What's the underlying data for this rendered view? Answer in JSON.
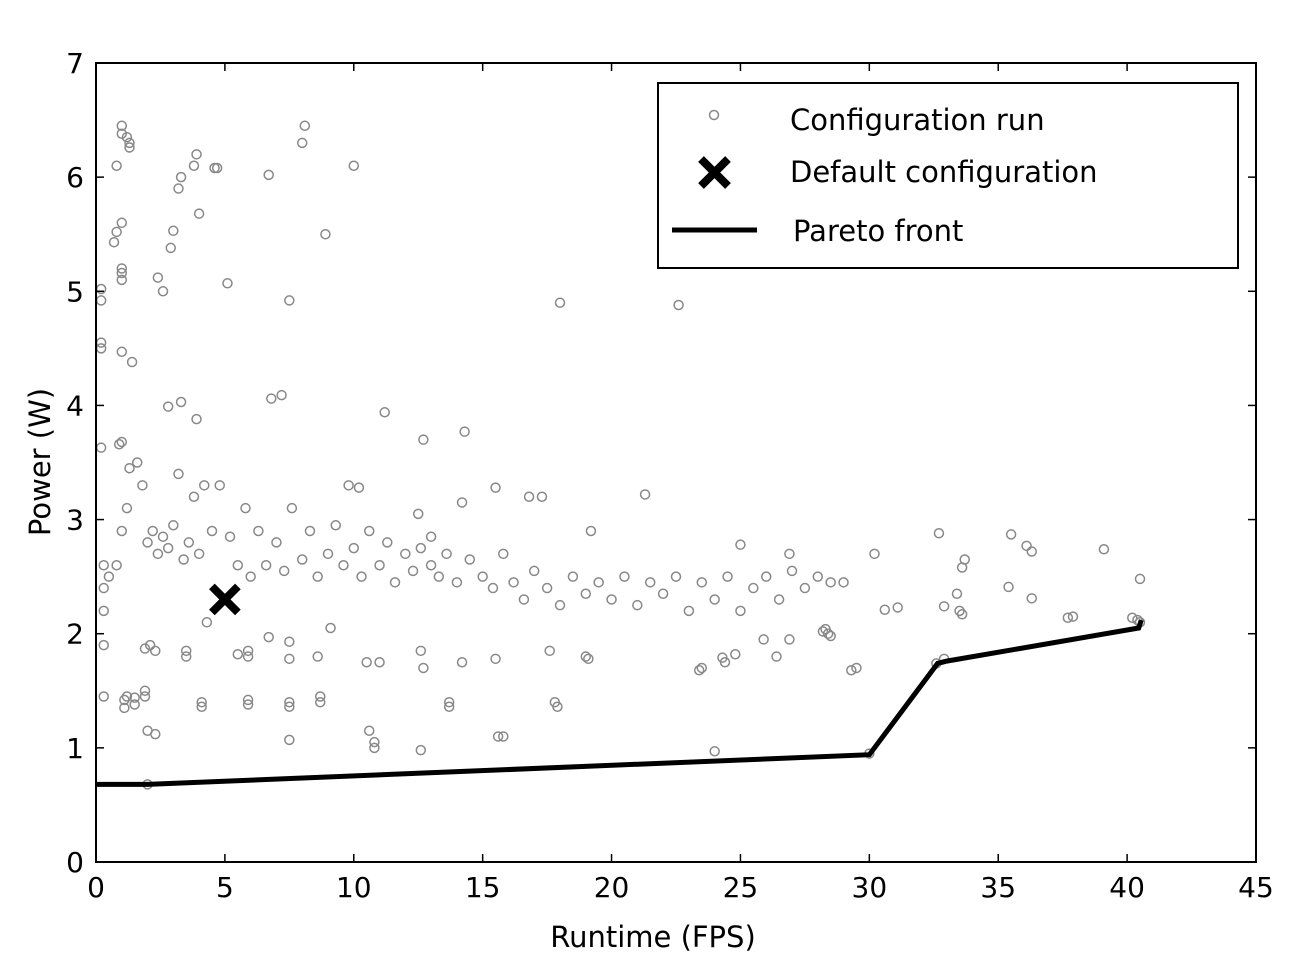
{
  "chart_data": {
    "type": "scatter",
    "title": "",
    "xlabel": "Runtime (FPS)",
    "ylabel": "Power (W)",
    "xlim": [
      0,
      45
    ],
    "ylim": [
      0,
      7
    ],
    "xticks": [
      "0",
      "5",
      "10",
      "15",
      "20",
      "25",
      "30",
      "35",
      "40",
      "45"
    ],
    "yticks": [
      "0",
      "1",
      "2",
      "3",
      "4",
      "5",
      "6",
      "7"
    ],
    "grid": false,
    "legend_position": "top-right",
    "legend": {
      "config_run": "Configuration run",
      "default_config": "Default configuration",
      "pareto": "Pareto front"
    },
    "colors": {
      "runs": "#888888",
      "default": "#000000",
      "pareto": "#000000"
    },
    "default_configuration": [
      5.0,
      2.3
    ],
    "pareto_front": [
      [
        0,
        0.68
      ],
      [
        2,
        0.68
      ],
      [
        30,
        0.94
      ],
      [
        32.65,
        1.74
      ],
      [
        33,
        1.76
      ],
      [
        40.45,
        2.05
      ],
      [
        40.55,
        2.12
      ]
    ],
    "configuration_runs": [
      [
        0.2,
        4.92
      ],
      [
        0.2,
        5.02
      ],
      [
        0.2,
        4.55
      ],
      [
        0.2,
        4.5
      ],
      [
        0.2,
        3.63
      ],
      [
        0.7,
        5.43
      ],
      [
        0.8,
        5.52
      ],
      [
        0.8,
        6.1
      ],
      [
        0.9,
        3.66
      ],
      [
        1,
        3.68
      ],
      [
        1,
        4.47
      ],
      [
        1,
        5.1
      ],
      [
        1,
        5.16
      ],
      [
        1,
        5.2
      ],
      [
        1,
        5.6
      ],
      [
        1,
        6.45
      ],
      [
        1,
        6.38
      ],
      [
        1.2,
        6.35
      ],
      [
        1.3,
        6.3
      ],
      [
        1.3,
        6.26
      ],
      [
        1.4,
        4.38
      ],
      [
        2.4,
        5.12
      ],
      [
        2.6,
        5.0
      ],
      [
        2.9,
        5.38
      ],
      [
        3,
        5.53
      ],
      [
        3.2,
        5.9
      ],
      [
        3.3,
        6.0
      ],
      [
        3.8,
        6.1
      ],
      [
        3.9,
        6.2
      ],
      [
        4,
        5.68
      ],
      [
        4.6,
        6.08
      ],
      [
        4.7,
        6.08
      ],
      [
        5.1,
        5.07
      ],
      [
        6.7,
        6.02
      ],
      [
        7.5,
        4.92
      ],
      [
        8,
        6.3
      ],
      [
        8.1,
        6.45
      ],
      [
        8.9,
        5.5
      ],
      [
        10,
        6.1
      ],
      [
        18,
        4.9
      ],
      [
        22.6,
        4.88
      ],
      [
        2.8,
        3.99
      ],
      [
        3.3,
        4.03
      ],
      [
        3.9,
        3.88
      ],
      [
        6.8,
        4.06
      ],
      [
        7.2,
        4.09
      ],
      [
        11.2,
        3.94
      ],
      [
        12.7,
        3.7
      ],
      [
        14.3,
        3.77
      ],
      [
        30.2,
        2.7
      ],
      [
        32.7,
        2.88
      ],
      [
        33.6,
        2.58
      ],
      [
        33.7,
        2.65
      ],
      [
        35.4,
        2.41
      ],
      [
        35.5,
        2.87
      ],
      [
        36.1,
        2.77
      ],
      [
        36.3,
        2.72
      ],
      [
        36.3,
        2.31
      ],
      [
        37.9,
        2.15
      ],
      [
        37.7,
        2.14
      ],
      [
        39.1,
        2.74
      ],
      [
        40.2,
        2.14
      ],
      [
        40.5,
        2.48
      ],
      [
        40.4,
        2.12
      ],
      [
        32.9,
        2.24
      ],
      [
        33.4,
        2.35
      ],
      [
        33.5,
        2.2
      ],
      [
        33.6,
        2.17
      ],
      [
        31.1,
        2.23
      ],
      [
        30.6,
        2.21
      ],
      [
        28.4,
        2.0
      ],
      [
        28.2,
        2.02
      ],
      [
        28.5,
        1.98
      ],
      [
        28.3,
        2.04
      ],
      [
        29.3,
        1.68
      ],
      [
        29.5,
        1.7
      ],
      [
        23.5,
        1.7
      ],
      [
        23.4,
        1.68
      ],
      [
        24.3,
        1.79
      ],
      [
        24.4,
        1.75
      ],
      [
        25.9,
        1.95
      ],
      [
        26.9,
        1.95
      ],
      [
        26.4,
        1.8
      ],
      [
        24.8,
        1.82
      ],
      [
        24,
        0.97
      ],
      [
        30,
        0.95
      ],
      [
        32.6,
        1.74
      ],
      [
        32.9,
        1.78
      ],
      [
        40.5,
        2.1
      ],
      [
        0.3,
        1.45
      ],
      [
        0.3,
        1.9
      ],
      [
        0.3,
        2.2
      ],
      [
        0.3,
        2.4
      ],
      [
        0.3,
        2.6
      ],
      [
        1.1,
        1.35
      ],
      [
        1.1,
        1.42
      ],
      [
        1.2,
        1.45
      ],
      [
        1.5,
        1.38
      ],
      [
        1.5,
        1.44
      ],
      [
        1.9,
        1.45
      ],
      [
        1.9,
        1.5
      ],
      [
        1.9,
        1.87
      ],
      [
        2.3,
        1.85
      ],
      [
        2.1,
        1.9
      ],
      [
        3.5,
        1.8
      ],
      [
        3.5,
        1.85
      ],
      [
        4.1,
        1.4
      ],
      [
        4.1,
        1.36
      ],
      [
        5.9,
        1.38
      ],
      [
        5.9,
        1.42
      ],
      [
        5.9,
        1.8
      ],
      [
        5.9,
        1.85
      ],
      [
        7.5,
        1.4
      ],
      [
        7.5,
        1.36
      ],
      [
        7.5,
        1.78
      ],
      [
        8.7,
        1.4
      ],
      [
        8.7,
        1.45
      ],
      [
        8.6,
        1.8
      ],
      [
        10.5,
        1.75
      ],
      [
        11,
        1.75
      ],
      [
        12.6,
        1.85
      ],
      [
        12.7,
        1.7
      ],
      [
        13.7,
        1.4
      ],
      [
        13.7,
        1.36
      ],
      [
        14.2,
        1.75
      ],
      [
        15.5,
        1.78
      ],
      [
        15.6,
        1.1
      ],
      [
        15.8,
        1.1
      ],
      [
        17.8,
        1.4
      ],
      [
        17.9,
        1.36
      ],
      [
        17.6,
        1.85
      ],
      [
        19.1,
        1.78
      ],
      [
        19,
        1.8
      ],
      [
        2,
        1.15
      ],
      [
        2.3,
        1.12
      ],
      [
        7.5,
        1.07
      ],
      [
        10.8,
        1.05
      ],
      [
        10.8,
        1.0
      ],
      [
        10.6,
        1.15
      ],
      [
        12.6,
        0.98
      ],
      [
        4.3,
        2.1
      ],
      [
        9.1,
        2.05
      ],
      [
        6.7,
        1.97
      ],
      [
        7.5,
        1.93
      ],
      [
        5.5,
        1.82
      ],
      [
        2,
        0.68
      ],
      [
        0.5,
        2.5
      ],
      [
        0.8,
        2.6
      ],
      [
        1,
        2.9
      ],
      [
        1.2,
        3.1
      ],
      [
        1.3,
        3.45
      ],
      [
        1.6,
        3.5
      ],
      [
        1.8,
        3.3
      ],
      [
        2,
        2.8
      ],
      [
        2.2,
        2.9
      ],
      [
        2.4,
        2.7
      ],
      [
        2.6,
        2.85
      ],
      [
        2.8,
        2.75
      ],
      [
        3,
        2.95
      ],
      [
        3.2,
        3.4
      ],
      [
        3.4,
        2.65
      ],
      [
        3.6,
        2.8
      ],
      [
        3.8,
        3.2
      ],
      [
        4,
        2.7
      ],
      [
        4.2,
        3.3
      ],
      [
        4.5,
        2.9
      ],
      [
        4.8,
        3.3
      ],
      [
        5.2,
        2.85
      ],
      [
        5.5,
        2.6
      ],
      [
        5.8,
        3.1
      ],
      [
        6,
        2.5
      ],
      [
        6.3,
        2.9
      ],
      [
        6.6,
        2.6
      ],
      [
        7,
        2.8
      ],
      [
        7.3,
        2.55
      ],
      [
        7.6,
        3.1
      ],
      [
        8,
        2.65
      ],
      [
        8.3,
        2.9
      ],
      [
        8.6,
        2.5
      ],
      [
        9,
        2.7
      ],
      [
        9.3,
        2.95
      ],
      [
        9.6,
        2.6
      ],
      [
        10,
        2.75
      ],
      [
        10.3,
        2.5
      ],
      [
        10.6,
        2.9
      ],
      [
        11,
        2.6
      ],
      [
        11.3,
        2.8
      ],
      [
        11.6,
        2.45
      ],
      [
        12,
        2.7
      ],
      [
        12.3,
        2.55
      ],
      [
        12.6,
        2.75
      ],
      [
        13,
        2.6
      ],
      [
        13.3,
        2.5
      ],
      [
        13.6,
        2.7
      ],
      [
        14,
        2.45
      ],
      [
        14.5,
        2.65
      ],
      [
        15,
        2.5
      ],
      [
        15.4,
        2.4
      ],
      [
        15.8,
        2.7
      ],
      [
        16.2,
        2.45
      ],
      [
        16.6,
        2.3
      ],
      [
        17,
        2.55
      ],
      [
        17.5,
        2.4
      ],
      [
        18,
        2.25
      ],
      [
        18.5,
        2.5
      ],
      [
        19,
        2.35
      ],
      [
        19.5,
        2.45
      ],
      [
        20,
        2.3
      ],
      [
        20.5,
        2.5
      ],
      [
        21,
        2.25
      ],
      [
        21.5,
        2.45
      ],
      [
        22,
        2.35
      ],
      [
        22.5,
        2.5
      ],
      [
        23,
        2.2
      ],
      [
        23.5,
        2.45
      ],
      [
        24,
        2.3
      ],
      [
        24.5,
        2.5
      ],
      [
        25,
        2.2
      ],
      [
        25.5,
        2.4
      ],
      [
        26,
        2.5
      ],
      [
        26.5,
        2.3
      ],
      [
        27,
        2.55
      ],
      [
        27.5,
        2.4
      ],
      [
        28,
        2.5
      ],
      [
        28.5,
        2.45
      ],
      [
        29,
        2.45
      ],
      [
        19.2,
        2.9
      ],
      [
        21.3,
        3.22
      ],
      [
        15.5,
        3.28
      ],
      [
        16.8,
        3.2
      ],
      [
        17.3,
        3.2
      ],
      [
        13,
        2.85
      ],
      [
        9.8,
        3.3
      ],
      [
        10.2,
        3.28
      ],
      [
        12.5,
        3.05
      ],
      [
        14.2,
        3.15
      ],
      [
        26.9,
        2.7
      ],
      [
        25,
        2.78
      ]
    ]
  }
}
